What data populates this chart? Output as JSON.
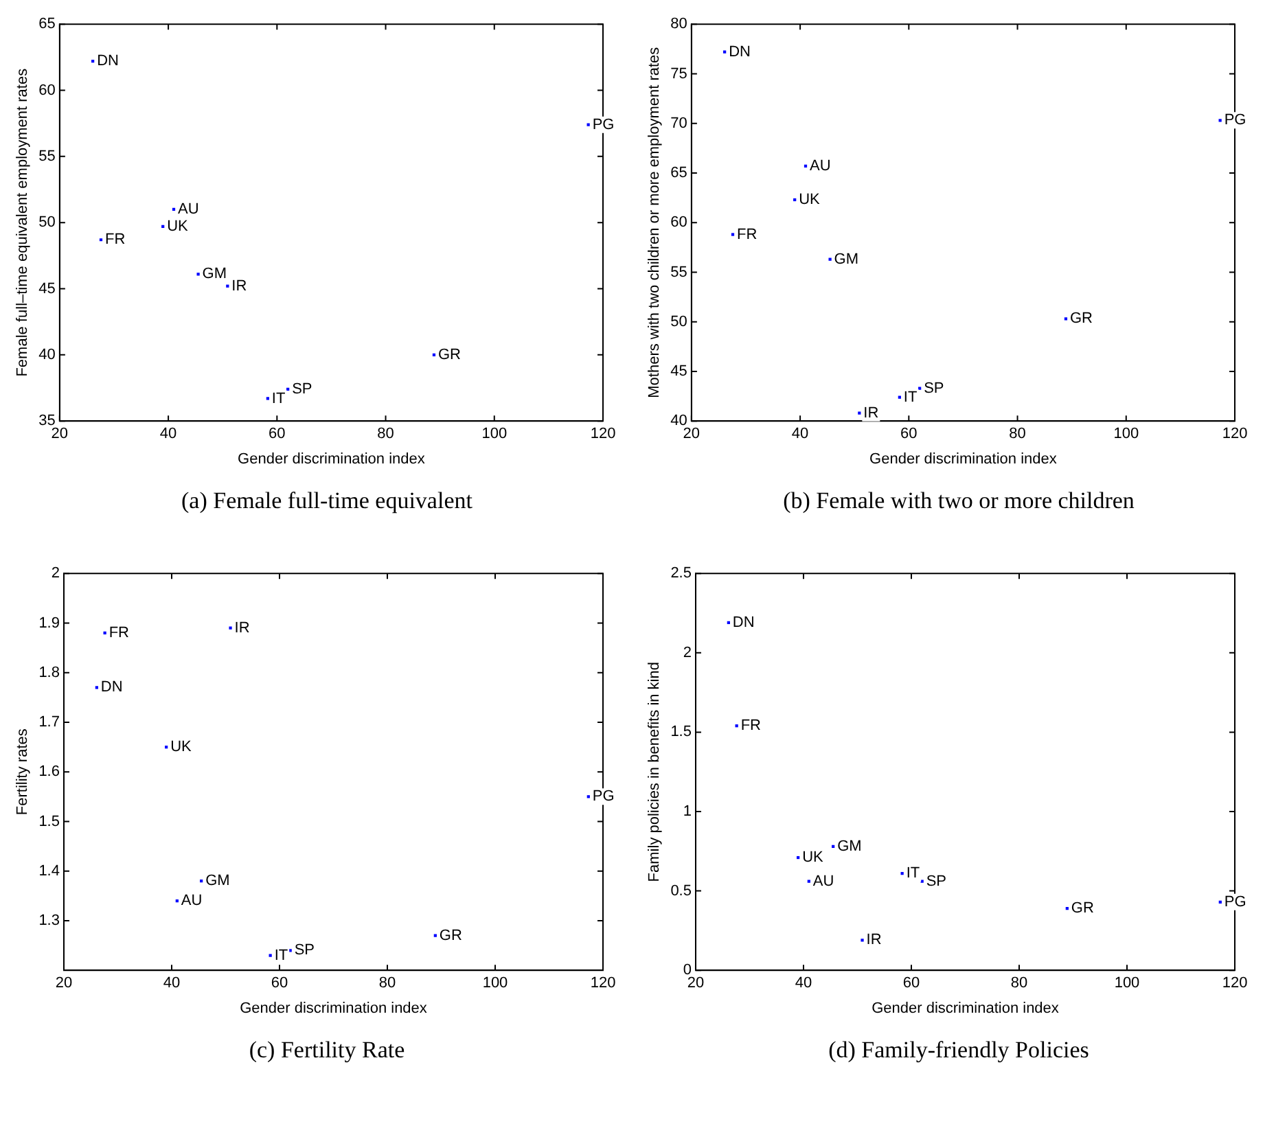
{
  "chart_data": [
    {
      "type": "scatter",
      "title": "(a) Female full-time equivalent",
      "xlabel": "Gender discrimination index",
      "ylabel": "Female full–time equivalent employment rates",
      "marker": "square",
      "grid": false,
      "legend": false,
      "x": [
        26.1,
        27.6,
        39,
        41,
        45.5,
        50.9,
        58.3,
        62,
        88.9,
        117.3
      ],
      "series": [
        {
          "color": "#0000ff",
          "values": [
            62.2,
            48.7,
            49.7,
            51,
            46.1,
            45.2,
            36.7,
            37.4,
            40,
            57.4
          ]
        }
      ],
      "xlim": [
        20,
        120
      ],
      "xticks": [
        20,
        40,
        60,
        80,
        100,
        120
      ],
      "ylim": [
        35,
        65
      ],
      "yticks": [
        35,
        40,
        45,
        50,
        55,
        60,
        65
      ],
      "annotations": [
        {
          "text": "DN",
          "x": 26.1,
          "y": 62.2
        },
        {
          "text": "FR",
          "x": 27.6,
          "y": 48.7
        },
        {
          "text": "UK",
          "x": 39,
          "y": 49.7
        },
        {
          "text": "AU",
          "x": 41,
          "y": 51
        },
        {
          "text": "GM",
          "x": 45.5,
          "y": 46.1
        },
        {
          "text": "IR",
          "x": 50.9,
          "y": 45.2
        },
        {
          "text": "IT",
          "x": 58.3,
          "y": 36.7
        },
        {
          "text": "SP",
          "x": 62,
          "y": 37.4
        },
        {
          "text": "GR",
          "x": 88.9,
          "y": 40
        },
        {
          "text": "PG",
          "x": 117.3,
          "y": 57.4
        }
      ]
    },
    {
      "type": "scatter",
      "title": "(b) Female with two or more children",
      "xlabel": "Gender discrimination index",
      "ylabel": "Mothers with two children or more employment rates",
      "marker": "square",
      "grid": false,
      "legend": false,
      "x": [
        26.1,
        27.6,
        39,
        41,
        45.5,
        50.9,
        58.3,
        62,
        88.9,
        117.3
      ],
      "series": [
        {
          "color": "#0000ff",
          "values": [
            77.2,
            58.8,
            62.3,
            65.7,
            56.3,
            40.8,
            42.4,
            43.3,
            50.3,
            70.3
          ]
        }
      ],
      "xlim": [
        20,
        120
      ],
      "xticks": [
        20,
        40,
        60,
        80,
        100,
        120
      ],
      "ylim": [
        40,
        80
      ],
      "yticks": [
        40,
        45,
        50,
        55,
        60,
        65,
        70,
        75,
        80
      ],
      "annotations": [
        {
          "text": "DN",
          "x": 26.1,
          "y": 77.2
        },
        {
          "text": "FR",
          "x": 27.6,
          "y": 58.8
        },
        {
          "text": "UK",
          "x": 39,
          "y": 62.3
        },
        {
          "text": "AU",
          "x": 41,
          "y": 65.7
        },
        {
          "text": "GM",
          "x": 45.5,
          "y": 56.3
        },
        {
          "text": "IR",
          "x": 50.9,
          "y": 40.8
        },
        {
          "text": "IT",
          "x": 58.3,
          "y": 42.4
        },
        {
          "text": "SP",
          "x": 62,
          "y": 43.3
        },
        {
          "text": "GR",
          "x": 88.9,
          "y": 50.3
        },
        {
          "text": "PG",
          "x": 117.3,
          "y": 70.3
        }
      ]
    },
    {
      "type": "scatter",
      "title": "(c) Fertility Rate",
      "xlabel": "Gender discrimination index",
      "ylabel": "Fertility rates",
      "marker": "square",
      "grid": false,
      "legend": false,
      "x": [
        26.1,
        27.6,
        39,
        41,
        45.5,
        50.9,
        58.3,
        62,
        88.9,
        117.3
      ],
      "series": [
        {
          "color": "#0000ff",
          "values": [
            1.77,
            1.88,
            1.65,
            1.34,
            1.38,
            1.89,
            1.23,
            1.24,
            1.27,
            1.55
          ]
        }
      ],
      "xlim": [
        20,
        120
      ],
      "xticks": [
        20,
        40,
        60,
        80,
        100,
        120
      ],
      "ylim": [
        1.2,
        2
      ],
      "yticks": [
        1.3,
        1.4,
        1.5,
        1.6,
        1.7,
        1.8,
        1.9,
        2
      ],
      "annotations": [
        {
          "text": "DN",
          "x": 26.1,
          "y": 1.77
        },
        {
          "text": "FR",
          "x": 27.6,
          "y": 1.88
        },
        {
          "text": "UK",
          "x": 39,
          "y": 1.65
        },
        {
          "text": "AU",
          "x": 41,
          "y": 1.34
        },
        {
          "text": "GM",
          "x": 45.5,
          "y": 1.38
        },
        {
          "text": "IR",
          "x": 50.9,
          "y": 1.89
        },
        {
          "text": "IT",
          "x": 58.3,
          "y": 1.23
        },
        {
          "text": "SP",
          "x": 62,
          "y": 1.24
        },
        {
          "text": "GR",
          "x": 88.9,
          "y": 1.27
        },
        {
          "text": "PG",
          "x": 117.3,
          "y": 1.55
        }
      ]
    },
    {
      "type": "scatter",
      "title": "(d) Family-friendly Policies",
      "xlabel": "Gender discrimination index",
      "ylabel": "Family policies in benefits in kind",
      "marker": "square",
      "grid": false,
      "legend": false,
      "x": [
        26.1,
        27.6,
        39,
        41,
        45.5,
        50.9,
        58.3,
        62,
        88.9,
        117.3
      ],
      "series": [
        {
          "color": "#0000ff",
          "values": [
            2.19,
            1.54,
            0.71,
            0.56,
            0.78,
            0.19,
            0.61,
            0.56,
            0.39,
            0.43
          ]
        }
      ],
      "xlim": [
        20,
        120
      ],
      "xticks": [
        20,
        40,
        60,
        80,
        100,
        120
      ],
      "ylim": [
        0,
        2.5
      ],
      "yticks": [
        0,
        0.5,
        1,
        1.5,
        2,
        2.5
      ],
      "annotations": [
        {
          "text": "DN",
          "x": 26.1,
          "y": 2.19
        },
        {
          "text": "FR",
          "x": 27.6,
          "y": 1.54
        },
        {
          "text": "UK",
          "x": 39,
          "y": 0.71
        },
        {
          "text": "AU",
          "x": 41,
          "y": 0.56
        },
        {
          "text": "GM",
          "x": 45.5,
          "y": 0.78
        },
        {
          "text": "IR",
          "x": 50.9,
          "y": 0.19
        },
        {
          "text": "IT",
          "x": 58.3,
          "y": 0.61
        },
        {
          "text": "SP",
          "x": 62,
          "y": 0.56
        },
        {
          "text": "GR",
          "x": 88.9,
          "y": 0.39
        },
        {
          "text": "PG",
          "x": 117.3,
          "y": 0.43
        }
      ]
    }
  ]
}
